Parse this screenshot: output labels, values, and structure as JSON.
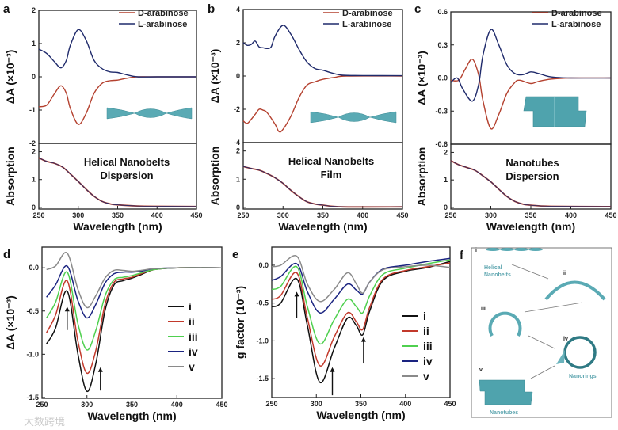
{
  "panel_letters": {
    "a": "a",
    "b": "b",
    "c": "c",
    "d": "d",
    "e": "e",
    "f": "f"
  },
  "colors": {
    "D": "#b4412f",
    "L": "#1f2a6b",
    "i": "#111111",
    "ii": "#c2392b",
    "iii": "#4fd04f",
    "iv": "#1a2380",
    "v": "#8a8a8a",
    "teal": "#4fa3ad"
  },
  "watermark": "大数跨境",
  "chart_data": [
    {
      "id": "a",
      "type": "line",
      "title": "",
      "xlabel": "Wavelength (nm)",
      "ylabel": "ΔA (×10⁻³)",
      "xlim": [
        250,
        450
      ],
      "ylim": [
        -2,
        2
      ],
      "xticks": [
        "250",
        "300",
        "350",
        "400",
        "450"
      ],
      "yticks": [
        "-2",
        "-1",
        "0",
        "1",
        "2"
      ],
      "legend": [
        "D-arabinose",
        "L-arabinose"
      ],
      "legend_position": "top-right",
      "series": [
        {
          "name": "D-arabinose",
          "key": "D",
          "x": [
            250,
            260,
            270,
            278,
            285,
            290,
            300,
            310,
            320,
            330,
            340,
            350,
            360,
            375,
            400,
            450
          ],
          "y": [
            -0.9,
            -0.85,
            -0.5,
            -0.27,
            -0.5,
            -0.95,
            -1.43,
            -1.1,
            -0.5,
            -0.2,
            -0.12,
            -0.1,
            -0.05,
            0,
            0,
            0
          ]
        },
        {
          "name": "L-arabinose",
          "key": "L",
          "x": [
            250,
            260,
            270,
            278,
            285,
            290,
            300,
            310,
            320,
            330,
            340,
            350,
            360,
            375,
            400,
            450
          ],
          "y": [
            0.83,
            0.7,
            0.45,
            0.27,
            0.5,
            0.95,
            1.42,
            1.1,
            0.5,
            0.25,
            0.15,
            0.13,
            0.07,
            0,
            0,
            0
          ]
        }
      ],
      "absorption": {
        "ylabel": "Absorption",
        "ylim": [
          -0.06,
          2.3
        ],
        "yticks": [
          "0",
          "1",
          "2"
        ],
        "annotation": [
          "Helical Nanobelts",
          "Dispersion"
        ],
        "x": [
          250,
          260,
          270,
          280,
          290,
          300,
          310,
          320,
          330,
          340,
          350,
          375,
          400,
          450
        ],
        "y": [
          1.78,
          1.65,
          1.58,
          1.45,
          1.2,
          0.93,
          0.65,
          0.4,
          0.22,
          0.13,
          0.09,
          0.05,
          0.04,
          0.03
        ]
      }
    },
    {
      "id": "b",
      "type": "line",
      "title": "",
      "xlabel": "Wavelength (nm)",
      "ylabel": "ΔA (×10⁻³)",
      "xlim": [
        250,
        450
      ],
      "ylim": [
        -4,
        4
      ],
      "xticks": [
        "250",
        "300",
        "350",
        "400",
        "450"
      ],
      "yticks": [
        "-4",
        "-2",
        "0",
        "2",
        "4"
      ],
      "legend": [
        "D-arabinose",
        "L-arabinose"
      ],
      "legend_position": "top-right",
      "series": [
        {
          "name": "D-arabinose",
          "key": "D",
          "x": [
            250,
            255,
            260,
            265,
            270,
            275,
            280,
            290,
            295,
            300,
            310,
            320,
            330,
            340,
            350,
            365,
            380,
            450
          ],
          "y": [
            -2.7,
            -2.85,
            -2.6,
            -2.3,
            -2.0,
            -2.05,
            -2.2,
            -2.9,
            -3.35,
            -3.2,
            -2.4,
            -1.3,
            -0.55,
            -0.35,
            -0.2,
            -0.08,
            0,
            0
          ]
        },
        {
          "name": "L-arabinose",
          "key": "L",
          "x": [
            250,
            255,
            260,
            265,
            270,
            275,
            280,
            285,
            290,
            300,
            310,
            320,
            330,
            340,
            350,
            360,
            375,
            400,
            450
          ],
          "y": [
            2.0,
            1.85,
            1.9,
            2.1,
            1.75,
            1.7,
            1.65,
            1.75,
            2.4,
            3.05,
            2.5,
            1.6,
            0.85,
            0.45,
            0.35,
            0.2,
            0.05,
            0.03,
            0.02
          ]
        }
      ],
      "absorption": {
        "ylabel": "Absorption",
        "ylim": [
          -0.06,
          2.3
        ],
        "yticks": [
          "0",
          "1",
          "2"
        ],
        "annotation": [
          "Helical Nanobelts",
          "Film"
        ],
        "x": [
          250,
          260,
          270,
          280,
          290,
          300,
          310,
          320,
          330,
          340,
          350,
          375,
          450
        ],
        "y": [
          1.45,
          1.38,
          1.32,
          1.2,
          1.05,
          0.85,
          0.6,
          0.38,
          0.2,
          0.12,
          0.08,
          0.02,
          0.02
        ]
      }
    },
    {
      "id": "c",
      "type": "line",
      "title": "",
      "xlabel": "Wavelength (nm)",
      "ylabel": "ΔA (×10⁻³)",
      "xlim": [
        250,
        450
      ],
      "ylim": [
        -0.6,
        0.6
      ],
      "xticks": [
        "250",
        "300",
        "350",
        "400",
        "450"
      ],
      "yticks": [
        "-0.6",
        "-0.3",
        "0.0",
        "0.3",
        "0.6"
      ],
      "legend": [
        "D-arabinose",
        "L-arabinose"
      ],
      "legend_position": "top-right",
      "series": [
        {
          "name": "D-arabinose",
          "key": "D",
          "x": [
            250,
            260,
            268,
            277,
            285,
            290,
            300,
            310,
            320,
            330,
            336,
            350,
            360,
            375,
            400,
            450
          ],
          "y": [
            -0.02,
            -0.02,
            0.08,
            0.17,
            0.02,
            -0.2,
            -0.46,
            -0.33,
            -0.14,
            -0.04,
            -0.02,
            -0.05,
            -0.03,
            -0.01,
            0,
            0
          ]
        },
        {
          "name": "L-arabinose",
          "key": "L",
          "x": [
            250,
            258,
            265,
            277,
            285,
            290,
            300,
            310,
            320,
            330,
            340,
            350,
            360,
            375,
            400,
            450
          ],
          "y": [
            -0.04,
            0,
            -0.1,
            -0.21,
            -0.05,
            0.2,
            0.44,
            0.3,
            0.12,
            0.04,
            0.03,
            0.055,
            0.04,
            0.01,
            0,
            0
          ]
        }
      ],
      "absorption": {
        "ylabel": "Absorption",
        "ylim": [
          -0.06,
          2.3
        ],
        "yticks": [
          "0",
          "1",
          "2"
        ],
        "annotation": [
          "Nanotubes",
          "Dispersion"
        ],
        "x": [
          250,
          260,
          270,
          280,
          290,
          300,
          310,
          320,
          330,
          340,
          350,
          375,
          450
        ],
        "y": [
          1.7,
          1.55,
          1.45,
          1.35,
          1.15,
          0.93,
          0.66,
          0.4,
          0.22,
          0.12,
          0.08,
          0.04,
          0.03
        ]
      }
    },
    {
      "id": "d",
      "type": "line",
      "title": "",
      "xlabel": "Wavelength (nm)",
      "ylabel": "ΔA (×10⁻³)",
      "xlim": [
        250,
        450
      ],
      "ylim": [
        -1.51,
        0.24
      ],
      "xticks": [
        "250",
        "300",
        "350",
        "400",
        "450"
      ],
      "yticks": [
        "0.0",
        "-0.5",
        "-1.0",
        "-1.5"
      ],
      "legend": [
        "i",
        "ii",
        "iii",
        "iv",
        "v"
      ],
      "legend_position": "center-right",
      "arrows": [
        {
          "x": 278,
          "from": -0.72,
          "to": -0.45
        },
        {
          "x": 315,
          "from": -1.42,
          "to": -1.15
        }
      ],
      "series": [
        {
          "name": "i",
          "x": [
            255,
            265,
            278,
            290,
            300,
            310,
            320,
            330,
            340,
            350,
            360,
            375,
            400,
            450
          ],
          "y": [
            -0.88,
            -0.7,
            -0.27,
            -1.0,
            -1.43,
            -1.1,
            -0.5,
            -0.2,
            -0.15,
            -0.12,
            -0.08,
            -0.02,
            0,
            0
          ]
        },
        {
          "name": "ii",
          "x": [
            255,
            265,
            278,
            290,
            300,
            310,
            320,
            330,
            340,
            350,
            360,
            375,
            400,
            450
          ],
          "y": [
            -0.75,
            -0.55,
            -0.15,
            -0.85,
            -1.22,
            -0.95,
            -0.43,
            -0.17,
            -0.13,
            -0.11,
            -0.07,
            -0.02,
            0,
            0
          ]
        },
        {
          "name": "iii",
          "x": [
            255,
            265,
            278,
            290,
            300,
            310,
            320,
            330,
            340,
            350,
            360,
            375,
            400,
            450
          ],
          "y": [
            -0.58,
            -0.4,
            -0.05,
            -0.65,
            -0.95,
            -0.72,
            -0.33,
            -0.14,
            -0.11,
            -0.09,
            -0.06,
            -0.02,
            0,
            0
          ]
        },
        {
          "name": "iv",
          "x": [
            255,
            265,
            278,
            290,
            300,
            310,
            320,
            330,
            340,
            350,
            360,
            375,
            400,
            450
          ],
          "y": [
            -0.34,
            -0.2,
            0.02,
            -0.38,
            -0.58,
            -0.42,
            -0.18,
            -0.07,
            -0.05,
            -0.05,
            -0.04,
            -0.01,
            0,
            0
          ]
        },
        {
          "name": "v",
          "x": [
            255,
            265,
            278,
            290,
            300,
            310,
            320,
            330,
            340,
            350,
            360,
            375,
            400,
            450
          ],
          "y": [
            -0.02,
            0.02,
            0.17,
            -0.25,
            -0.46,
            -0.32,
            -0.12,
            -0.03,
            -0.03,
            -0.04,
            -0.03,
            -0.01,
            0,
            0
          ]
        }
      ]
    },
    {
      "id": "e",
      "type": "line",
      "title": "",
      "xlabel": "Wavelength (nm)",
      "ylabel": "g factor (10⁻³)",
      "xlim": [
        250,
        450
      ],
      "ylim": [
        -1.75,
        0.24
      ],
      "xticks": [
        "250",
        "300",
        "350",
        "400",
        "450"
      ],
      "yticks": [
        "0.0",
        "-0.5",
        "-1.0",
        "-1.5"
      ],
      "legend": [
        "i",
        "ii",
        "iii",
        "iv",
        "v"
      ],
      "legend_position": "bottom-right",
      "arrows": [
        {
          "x": 278,
          "from": -0.7,
          "to": -0.35
        },
        {
          "x": 318,
          "from": -1.72,
          "to": -1.35
        },
        {
          "x": 353,
          "from": -1.3,
          "to": -0.95
        }
      ],
      "series": [
        {
          "name": "i",
          "x": [
            250,
            260,
            278,
            290,
            304,
            320,
            335,
            345,
            352,
            360,
            375,
            400,
            425,
            450
          ],
          "y": [
            -0.55,
            -0.5,
            -0.18,
            -0.8,
            -1.55,
            -1.1,
            -0.7,
            -0.8,
            -0.92,
            -0.6,
            -0.2,
            -0.08,
            -0.03,
            0.05
          ]
        },
        {
          "name": "ii",
          "x": [
            250,
            260,
            278,
            290,
            304,
            320,
            335,
            345,
            352,
            360,
            375,
            400,
            425,
            450
          ],
          "y": [
            -0.45,
            -0.4,
            -0.1,
            -0.7,
            -1.33,
            -0.95,
            -0.63,
            -0.75,
            -0.85,
            -0.55,
            -0.18,
            -0.07,
            -0.02,
            0.03
          ]
        },
        {
          "name": "iii",
          "x": [
            250,
            260,
            278,
            290,
            304,
            320,
            335,
            345,
            352,
            360,
            375,
            400,
            425,
            450
          ],
          "y": [
            -0.32,
            -0.28,
            -0.02,
            -0.55,
            -1.04,
            -0.72,
            -0.45,
            -0.55,
            -0.63,
            -0.4,
            -0.12,
            -0.04,
            0.02,
            0.07
          ]
        },
        {
          "name": "iv",
          "x": [
            250,
            260,
            278,
            290,
            304,
            320,
            335,
            345,
            352,
            360,
            375,
            400,
            425,
            450
          ],
          "y": [
            -0.2,
            -0.15,
            0.02,
            -0.35,
            -0.63,
            -0.45,
            -0.25,
            -0.33,
            -0.38,
            -0.22,
            -0.05,
            0,
            0.05,
            0.09
          ]
        },
        {
          "name": "v",
          "x": [
            250,
            260,
            278,
            290,
            304,
            320,
            335,
            345,
            352,
            360,
            375,
            400,
            425,
            450
          ],
          "y": [
            -0.02,
            0,
            0.12,
            -0.25,
            -0.48,
            -0.32,
            -0.1,
            -0.25,
            -0.37,
            -0.22,
            -0.06,
            -0.02,
            0,
            -0.03
          ]
        }
      ]
    }
  ],
  "schematic": {
    "stages": [
      "i",
      "ii",
      "iii",
      "iv",
      "v"
    ],
    "labels": {
      "belts": [
        "Helical",
        "Nanobelts"
      ],
      "rings": "Nanorings",
      "tubes": "Nanotubes"
    }
  }
}
